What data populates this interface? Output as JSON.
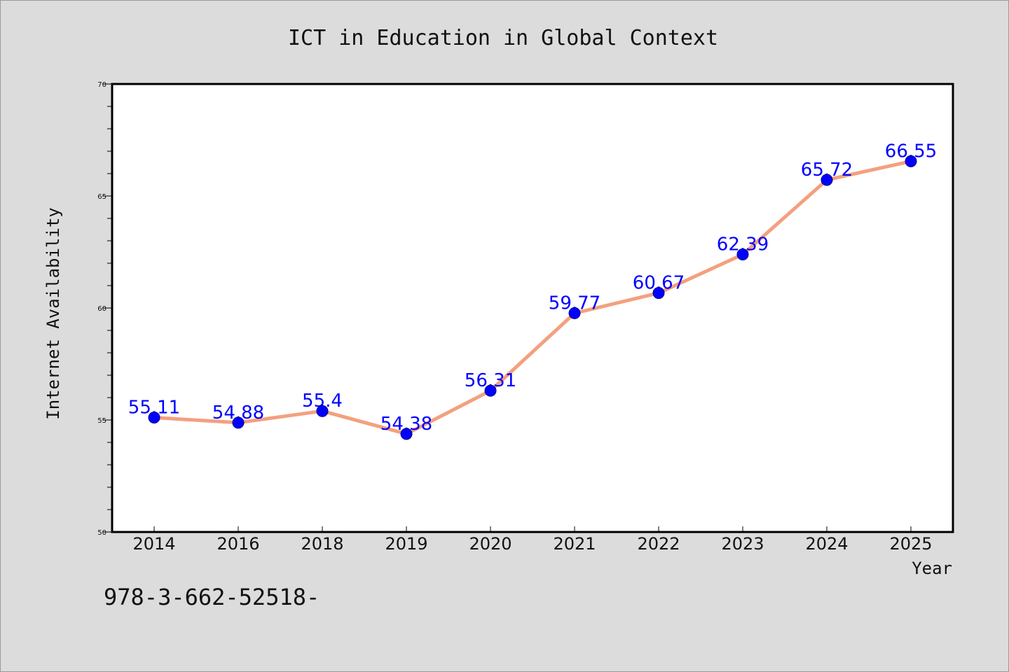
{
  "chart_data": {
    "type": "line",
    "title": "ICT in Education in Global Context",
    "xlabel": "Year",
    "ylabel": "Internet Availability",
    "categories": [
      "2014",
      "2016",
      "2018",
      "2019",
      "2020",
      "2021",
      "2022",
      "2023",
      "2024",
      "2025"
    ],
    "series": [
      {
        "values": [
          55.11,
          54.88,
          55.4,
          54.38,
          56.31,
          59.77,
          60.67,
          62.39,
          65.72,
          66.55
        ]
      }
    ],
    "data_labels": [
      "55.11",
      "54.88",
      "55.4",
      "54.38",
      "56.31",
      "59.77",
      "60.67",
      "62.39",
      "65.72",
      "66.55"
    ],
    "ylim": [
      50,
      70
    ],
    "yticks": [
      "50",
      "55",
      "60",
      "65",
      "70"
    ],
    "grid": false,
    "legend": "none",
    "colors": {
      "line": "#f4a07e",
      "marker": "#0000ff",
      "label": "#0000ff",
      "background": "#dcdcdc",
      "plot_background": "#ffffff"
    }
  },
  "annotation": "978-3-662-52518-"
}
